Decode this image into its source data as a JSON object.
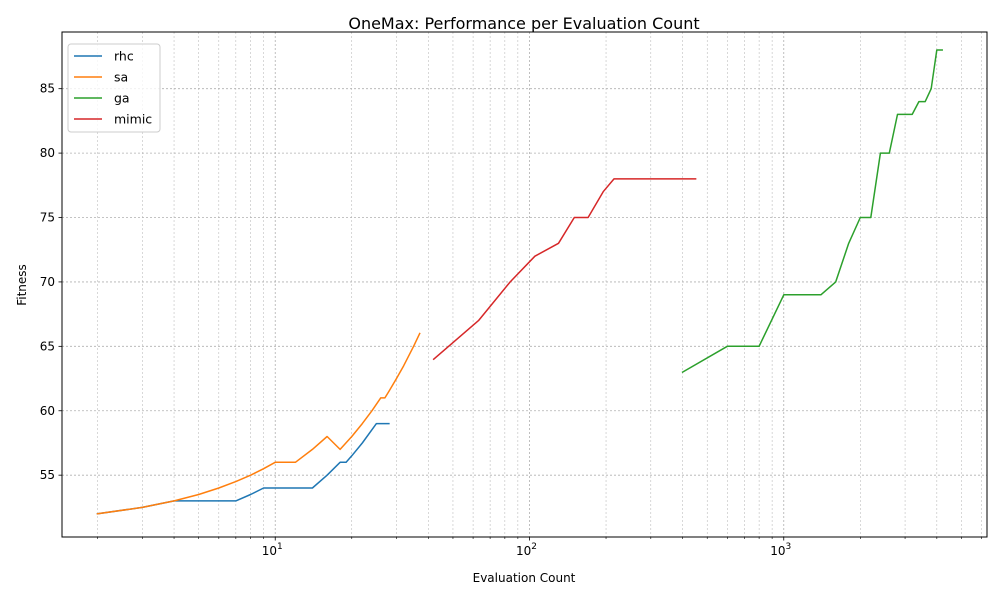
{
  "chart_data": {
    "type": "line",
    "title": "OneMax: Performance per Evaluation Count",
    "xlabel": "Evaluation Count",
    "ylabel": "Fitness",
    "xscale": "log",
    "xlim": [
      1.45,
      6300
    ],
    "ylim": [
      50.2,
      89.4
    ],
    "x_ticks": [
      {
        "value": 10,
        "base": "10",
        "exp": "1"
      },
      {
        "value": 100,
        "base": "10",
        "exp": "2"
      },
      {
        "value": 1000,
        "base": "10",
        "exp": "3"
      }
    ],
    "y_ticks": [
      55,
      60,
      65,
      70,
      75,
      80,
      85
    ],
    "grid": true,
    "legend_position": "top-left",
    "series": [
      {
        "name": "rhc",
        "color": "#1f77b4",
        "x": [
          2,
          3,
          4,
          5,
          6,
          7,
          8,
          9,
          10,
          12,
          14,
          16,
          18,
          19,
          20,
          22,
          25,
          28
        ],
        "y": [
          52,
          52.5,
          53,
          53,
          53,
          53,
          53.5,
          54,
          54,
          54,
          54,
          55,
          56,
          56,
          56.5,
          57.5,
          59,
          59
        ]
      },
      {
        "name": "sa",
        "color": "#ff7f0e",
        "x": [
          2,
          3,
          4,
          5,
          6,
          7,
          8,
          9,
          10,
          11,
          12,
          14,
          16,
          18,
          20,
          22,
          24,
          26,
          27,
          28,
          30,
          32,
          35,
          37
        ],
        "y": [
          52,
          52.5,
          53,
          53.5,
          54,
          54.5,
          55,
          55.5,
          56,
          56,
          56,
          57,
          58,
          57,
          58,
          59,
          60,
          61,
          61,
          61.5,
          62.5,
          63.5,
          65,
          66
        ]
      },
      {
        "name": "ga",
        "color": "#2ca02c",
        "x": [
          400,
          600,
          700,
          800,
          1000,
          1200,
          1400,
          1600,
          1800,
          2000,
          2200,
          2400,
          2600,
          2800,
          3000,
          3200,
          3400,
          3600,
          3800,
          4000,
          4200
        ],
        "y": [
          63,
          65,
          65,
          65,
          69,
          69,
          69,
          70,
          73,
          75,
          75,
          80,
          80,
          83,
          83,
          83,
          84,
          84,
          85,
          88,
          88
        ]
      },
      {
        "name": "mimic",
        "color": "#d62728",
        "x": [
          42,
          63,
          84,
          105,
          130,
          150,
          170,
          195,
          215,
          260,
          350,
          450
        ],
        "y": [
          64,
          67,
          70,
          72,
          73,
          75,
          75,
          77,
          78,
          78,
          78,
          78
        ]
      }
    ]
  }
}
